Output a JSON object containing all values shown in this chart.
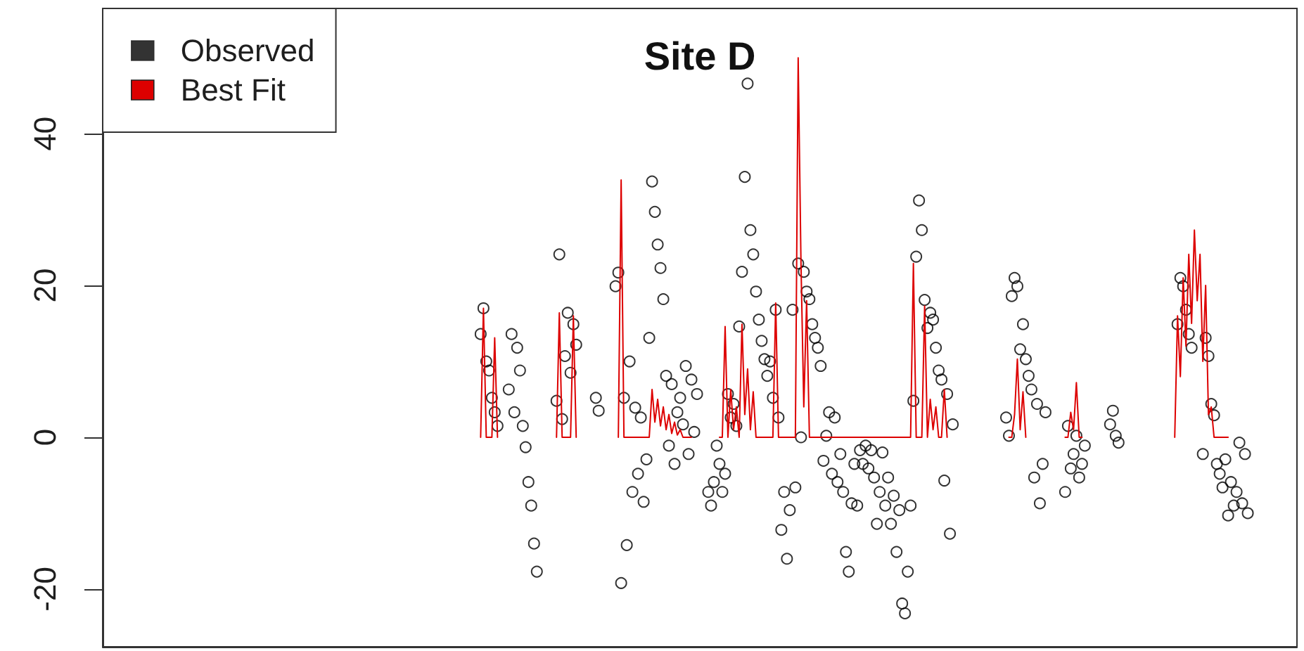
{
  "chart_data": {
    "type": "line",
    "title": "Site D",
    "categories": [
      null,
      null,
      null,
      null,
      null,
      null,
      null,
      null,
      null,
      null,
      null,
      null,
      null,
      null,
      null,
      null,
      null,
      null,
      null,
      null,
      null,
      null,
      null,
      null,
      null,
      null,
      null,
      null,
      null,
      null,
      null,
      null,
      null,
      null,
      null,
      null,
      null,
      null,
      null,
      null,
      null,
      null,
      null,
      null,
      null,
      null,
      null,
      null,
      null,
      null,
      null,
      null,
      null,
      null,
      null,
      null,
      null,
      null,
      null,
      null,
      null,
      null,
      null,
      null,
      null,
      null,
      null,
      null,
      null,
      null,
      null,
      null,
      null,
      null,
      null,
      null,
      null,
      null,
      null,
      null,
      null,
      null,
      null,
      null,
      null,
      null,
      null,
      null,
      null,
      null,
      null,
      null,
      null,
      null,
      null,
      null,
      null,
      null,
      null,
      null,
      null,
      null,
      null,
      null,
      null,
      null,
      null,
      null,
      null,
      null,
      null,
      null,
      null,
      null,
      null,
      null,
      null,
      null,
      null,
      null,
      null,
      null,
      null,
      null,
      null,
      null,
      null,
      null,
      null,
      null,
      null,
      null,
      null,
      null,
      null,
      null,
      null,
      null,
      null,
      null,
      null,
      null,
      null,
      null,
      null,
      null,
      null,
      null,
      null,
      null,
      null,
      null,
      null,
      null,
      null,
      null,
      null,
      null,
      null,
      null,
      null,
      null,
      null,
      null,
      null,
      null,
      null,
      null,
      null,
      null,
      null,
      null,
      null,
      null,
      null,
      null,
      null,
      null,
      null,
      null,
      null,
      null,
      null,
      null,
      null,
      null,
      null,
      null,
      null,
      null,
      null,
      null,
      null,
      null,
      null,
      null,
      null,
      null,
      null,
      null,
      null,
      null,
      null,
      null,
      null,
      null,
      null,
      null,
      null,
      null,
      null,
      null,
      null,
      null,
      null,
      null,
      null,
      null,
      null,
      null,
      null,
      null,
      null,
      null,
      null,
      null,
      null,
      null,
      null,
      null,
      null,
      null,
      null,
      null,
      null,
      null,
      null,
      null,
      null,
      null,
      null,
      null,
      null,
      null,
      null,
      null,
      null,
      null,
      null,
      null,
      null,
      null,
      null,
      null,
      null,
      null,
      null,
      null,
      null,
      null,
      null,
      null,
      null,
      null,
      null,
      null,
      null,
      null,
      null,
      null,
      null,
      null,
      null,
      null,
      null,
      null,
      null,
      null,
      null,
      null,
      null,
      null,
      null,
      null,
      null,
      null,
      null,
      null,
      null,
      null,
      null,
      null,
      null,
      null,
      null,
      null,
      null,
      null,
      null,
      null,
      null,
      null,
      null,
      null,
      null,
      null,
      null,
      null,
      null,
      null,
      null,
      null,
      null,
      null,
      null,
      null,
      null,
      null,
      null,
      null,
      null,
      null,
      null,
      null,
      null,
      null,
      null,
      null,
      null,
      null,
      null,
      null,
      null,
      null,
      null,
      null,
      null,
      null,
      null,
      null,
      null,
      null,
      null,
      null,
      null,
      null,
      null,
      null,
      null,
      null,
      null,
      null,
      null,
      null,
      null,
      null,
      null,
      null,
      null,
      null,
      null,
      null,
      null,
      null,
      null,
      null,
      null,
      null,
      null,
      null,
      null,
      null,
      null,
      null,
      null,
      null,
      null,
      null,
      null,
      null,
      null,
      null,
      null,
      null,
      null,
      null,
      null,
      null,
      null,
      null,
      null,
      null,
      null,
      null,
      null,
      null,
      null,
      null,
      null,
      null,
      null,
      null,
      null,
      null,
      null,
      null,
      null,
      null,
      null,
      null,
      null,
      null,
      null,
      null,
      null,
      null,
      null,
      null,
      null,
      null,
      null,
      null,
      null,
      null,
      null
    ],
    "series": [
      {
        "name": "Observed",
        "type": "scatter",
        "marker": "circle",
        "color": "#000000",
        "values": [
          null,
          null,
          null,
          null,
          null,
          null,
          null,
          null,
          null,
          null,
          null,
          null,
          null,
          null,
          null,
          null,
          null,
          null,
          null,
          null,
          null,
          null,
          null,
          null,
          null,
          null,
          null,
          null,
          null,
          null,
          null,
          null,
          null,
          null,
          null,
          null,
          null,
          null,
          null,
          null,
          null,
          null,
          null,
          null,
          null,
          null,
          null,
          null,
          null,
          null,
          null,
          null,
          null,
          null,
          null,
          null,
          null,
          null,
          null,
          null,
          null,
          null,
          null,
          null,
          null,
          null,
          null,
          null,
          null,
          null,
          null,
          null,
          null,
          null,
          null,
          null,
          null,
          null,
          null,
          null,
          null,
          null,
          null,
          null,
          null,
          null,
          null,
          null,
          null,
          null,
          null,
          null,
          null,
          null,
          null,
          null,
          null,
          null,
          null,
          null,
          null,
          null,
          null,
          null,
          null,
          null,
          null,
          null,
          null,
          null,
          null,
          null,
          null,
          null,
          null,
          null,
          null,
          null,
          null,
          null,
          null,
          null,
          null,
          null,
          null,
          null,
          null,
          null,
          null,
          null,
          null,
          null,
          null,
          null,
          13.6,
          17.0,
          10.0,
          8.8,
          5.2,
          3.3,
          1.5,
          null,
          null,
          null,
          6.3,
          13.6,
          3.3,
          11.8,
          8.8,
          1.5,
          -1.3,
          -5.9,
          -9.0,
          -14.0,
          -17.7,
          null,
          null,
          null,
          null,
          null,
          null,
          4.8,
          24.1,
          2.4,
          10.7,
          16.4,
          8.5,
          14.9,
          12.2,
          null,
          null,
          null,
          null,
          null,
          null,
          5.2,
          3.5,
          null,
          null,
          null,
          null,
          null,
          19.9,
          21.7,
          -19.2,
          5.2,
          -14.2,
          10.0,
          -7.2,
          3.9,
          -4.8,
          2.6,
          -8.5,
          -2.9,
          13.1,
          33.7,
          29.7,
          25.4,
          22.3,
          18.2,
          8.1,
          -1.1,
          7.0,
          -3.5,
          3.3,
          5.2,
          1.7,
          9.4,
          -2.2,
          7.6,
          0.7,
          5.7,
          null,
          null,
          null,
          -7.2,
          -9.0,
          -5.9,
          -1.1,
          -3.5,
          -7.2,
          -4.8,
          5.7,
          2.6,
          4.4,
          1.5,
          14.6,
          21.8,
          34.3,
          46.6,
          27.3,
          24.1,
          19.2,
          15.5,
          12.7,
          10.3,
          8.1,
          10.0,
          5.2,
          16.8,
          2.6,
          -12.2,
          -7.2,
          -16.0,
          -9.6,
          16.8,
          -6.6,
          22.9,
          0.0,
          21.8,
          19.2,
          18.2,
          14.9,
          13.1,
          11.8,
          9.4,
          -3.1,
          0.2,
          3.3,
          -4.8,
          2.6,
          -5.9,
          -2.2,
          -7.2,
          -15.1,
          -17.7,
          -8.7,
          -3.5,
          -9.0,
          -1.7,
          -3.5,
          -1.1,
          -4.1,
          -1.7,
          -5.3,
          -11.4,
          -7.2,
          -2.0,
          -9.0,
          -5.3,
          -11.4,
          -7.7,
          -15.1,
          -9.6,
          -21.9,
          -23.2,
          -17.7,
          -9.0,
          4.8,
          23.8,
          31.2,
          27.3,
          18.1,
          14.4,
          16.4,
          15.5,
          11.8,
          8.8,
          7.6,
          -5.7,
          5.7,
          -12.7,
          1.7,
          null,
          null,
          null,
          null,
          null,
          null,
          null,
          null,
          null,
          null,
          null,
          null,
          null,
          null,
          null,
          null,
          null,
          null,
          2.6,
          0.2,
          18.6,
          21.0,
          19.9,
          11.6,
          14.9,
          10.3,
          8.1,
          6.3,
          -5.3,
          4.4,
          -8.7,
          -3.5,
          3.3,
          null,
          null,
          null,
          null,
          null,
          null,
          -7.2,
          1.5,
          -4.1,
          -2.2,
          0.2,
          -5.3,
          -3.5,
          -1.1,
          null,
          null,
          null,
          null,
          null,
          null,
          null,
          null,
          1.7,
          3.5,
          0.2,
          -0.7,
          null,
          null,
          null,
          null,
          null,
          null,
          null,
          null,
          null,
          null,
          null,
          null,
          null,
          null,
          null,
          null,
          null,
          null,
          null,
          null,
          14.9,
          21.0,
          19.9,
          16.8,
          13.6,
          11.8,
          null,
          null,
          null,
          -2.2,
          13.1,
          10.7,
          4.4,
          2.9,
          -3.5,
          -4.8,
          -6.6,
          -2.9,
          -10.3,
          -5.9,
          -9.0,
          -7.2,
          -0.7,
          -8.7,
          -2.2,
          -10.0,
          null,
          null,
          null,
          null,
          null,
          null,
          null,
          null,
          null,
          null,
          null,
          null,
          null,
          null,
          null,
          null,
          null
        ]
      },
      {
        "name": "Best Fit",
        "marker": "none",
        "color": "#dd0000",
        "values": [
          null,
          null,
          null,
          null,
          null,
          null,
          null,
          null,
          null,
          null,
          null,
          null,
          null,
          null,
          null,
          null,
          null,
          null,
          null,
          null,
          null,
          null,
          null,
          null,
          null,
          null,
          null,
          null,
          null,
          null,
          null,
          null,
          null,
          null,
          null,
          null,
          null,
          null,
          null,
          null,
          null,
          null,
          null,
          null,
          null,
          null,
          null,
          null,
          null,
          null,
          null,
          null,
          null,
          null,
          null,
          null,
          null,
          null,
          null,
          null,
          null,
          null,
          null,
          null,
          null,
          null,
          null,
          null,
          null,
          null,
          null,
          null,
          null,
          null,
          null,
          null,
          null,
          null,
          null,
          null,
          null,
          null,
          null,
          null,
          null,
          null,
          null,
          null,
          null,
          null,
          null,
          null,
          null,
          null,
          null,
          null,
          null,
          null,
          null,
          null,
          null,
          null,
          null,
          null,
          null,
          null,
          null,
          null,
          null,
          null,
          null,
          null,
          null,
          null,
          null,
          null,
          null,
          null,
          null,
          null,
          null,
          null,
          null,
          null,
          null,
          null,
          null,
          null,
          null,
          null,
          null,
          null,
          null,
          null,
          0,
          17.0,
          0,
          0,
          0,
          13.1,
          0,
          null,
          null,
          null,
          null,
          null,
          null,
          null,
          null,
          null,
          null,
          null,
          null,
          null,
          null,
          null,
          null,
          null,
          null,
          null,
          null,
          0,
          16.4,
          0,
          0,
          0,
          0,
          16.0,
          0,
          null,
          null,
          null,
          null,
          null,
          null,
          null,
          null,
          null,
          null,
          null,
          null,
          null,
          null,
          0,
          33.9,
          0,
          0,
          0,
          0,
          0,
          0,
          0,
          0,
          0,
          0,
          6.3,
          2.0,
          5.0,
          1.5,
          4.0,
          1.0,
          3.0,
          0.5,
          2.0,
          0.3,
          1.0,
          0,
          0,
          0,
          0,
          null,
          null,
          null,
          null,
          null,
          null,
          null,
          null,
          null,
          0,
          0,
          14.6,
          0,
          6.3,
          1.0,
          4.0,
          0,
          14.9,
          3.0,
          9.0,
          1.0,
          6.0,
          0,
          0,
          0,
          0,
          0,
          0,
          0,
          17.7,
          0,
          0,
          0,
          0,
          0,
          0,
          0,
          50.0,
          22.9,
          4.0,
          18.0,
          0,
          0,
          0,
          0,
          0,
          0,
          0,
          0,
          0,
          0,
          0,
          0,
          0,
          0,
          0,
          0,
          0,
          0,
          0,
          0,
          0,
          0,
          0,
          0,
          0,
          0,
          0,
          0,
          0,
          0,
          0,
          0,
          0,
          0,
          0,
          0,
          0,
          22.9,
          0,
          0,
          0,
          17.3,
          0,
          5.0,
          1.0,
          4.0,
          0,
          0,
          6.3,
          0,
          null,
          null,
          null,
          null,
          null,
          null,
          null,
          null,
          null,
          null,
          null,
          null,
          null,
          null,
          null,
          null,
          null,
          null,
          null,
          null,
          null,
          0,
          0,
          3.0,
          10.3,
          1.0,
          6.0,
          0,
          null,
          null,
          null,
          null,
          null,
          null,
          null,
          null,
          null,
          null,
          null,
          null,
          null,
          0,
          0,
          3.3,
          1.0,
          7.2,
          0,
          0,
          null,
          null,
          null,
          null,
          null,
          null,
          null,
          null,
          null,
          null,
          null,
          null,
          null,
          null,
          null,
          null,
          null,
          null,
          null,
          null,
          null,
          null,
          null,
          null,
          null,
          null,
          null,
          null,
          null,
          null,
          null,
          null,
          0,
          16.0,
          8.0,
          21.0,
          12.0,
          24.1,
          15.0,
          27.3,
          18.0,
          24.1,
          10.0,
          20.0,
          3.0,
          4.0,
          0,
          0,
          0,
          0,
          0,
          0,
          null,
          null,
          null,
          null,
          null,
          null,
          null,
          null,
          null,
          null,
          null,
          null,
          null,
          null,
          null,
          null,
          null,
          null,
          null,
          null,
          null,
          null,
          null,
          null
        ]
      }
    ],
    "ylim": [
      -27.6,
      56.5
    ],
    "yticks": [
      -20,
      0,
      20,
      40
    ],
    "tick_labels": "y",
    "grid": false,
    "legend": "top left"
  }
}
